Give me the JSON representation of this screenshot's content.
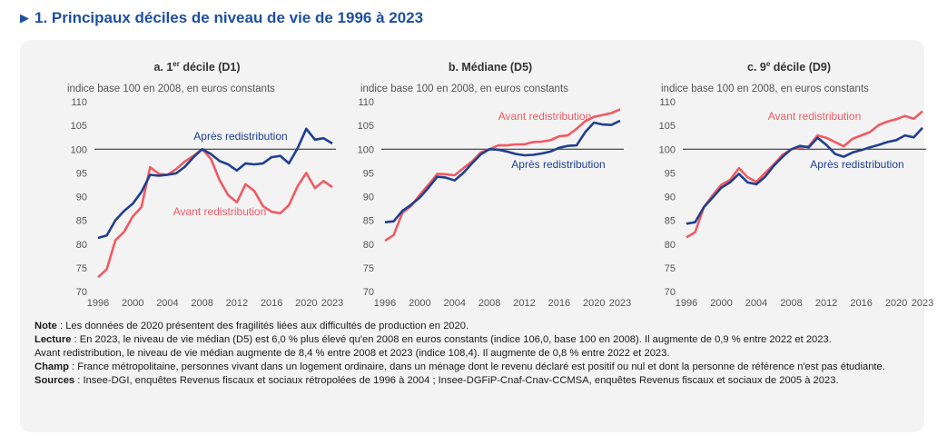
{
  "title": "1. Principaux déciles de niveau de vie de 1996 à 2023",
  "colors": {
    "apres": "#1f3f8f",
    "avant": "#f05a64",
    "ref": "#222222",
    "accent": "#1f4fa0"
  },
  "y_axis_ticks": [
    "110",
    "105",
    "100",
    "95",
    "90",
    "85",
    "80",
    "75",
    "70"
  ],
  "x_axis_ticks": [
    "1996",
    "2000",
    "2004",
    "2008",
    "2012",
    "2016",
    "2020",
    "2023"
  ],
  "charts": [
    {
      "title_prefix": "a. 1",
      "title_sup": "er",
      "title_suffix": " décile (D1)",
      "subtitle": "indice base 100 en 2008, en euros constants",
      "label_apres": "Après redistribution",
      "label_avant": "Avant redistribution"
    },
    {
      "title_prefix": "b. Médiane (D5)",
      "title_sup": "",
      "title_suffix": "",
      "subtitle": "indice base 100 en 2008, en euros constants",
      "label_apres": "Après redistribution",
      "label_avant": "Avant redistribution"
    },
    {
      "title_prefix": "c. 9",
      "title_sup": "e",
      "title_suffix": " décile (D9)",
      "subtitle": "indice base 100 en 2008, en euros constants",
      "label_apres": "Après redistribution",
      "label_avant": "Avant redistribution"
    }
  ],
  "notes": {
    "note_label": "Note",
    "note_text": " : Les données de 2020 présentent des fragilités liées aux difficultés de production en 2020.",
    "lecture_label": "Lecture",
    "lecture_text": " : En 2023, le niveau de vie médian (D5) est 6,0 % plus élevé qu'en 2008 en euros constants (indice 106,0, base 100 en 2008). Il augmente de 0,9 % entre 2022 et 2023.",
    "lecture_text2": "Avant redistribution, le niveau de vie médian augmente de 8,4 % entre 2008 et 2023 (indice 108,4). Il augmente de 0,8 % entre 2022 et 2023.",
    "champ_label": "Champ",
    "champ_text": " : France métropolitaine, personnes vivant dans un logement ordinaire, dans un ménage dont le revenu déclaré est positif ou nul et dont la personne de référence n'est pas étudiante.",
    "sources_label": "Sources",
    "sources_text": " : Insee-DGI, enquêtes Revenus fiscaux et sociaux rétropolées de 1996 à 2004 ; Insee-DGFiP-Cnaf-Cnav-CCMSA, enquêtes Revenus fiscaux et sociaux de 2005 à 2023."
  },
  "chart_data": [
    {
      "type": "line",
      "title": "a. 1er décile (D1)",
      "ylabel": "indice base 100 en 2008, en euros constants",
      "ylim": [
        70,
        110
      ],
      "reference_line": 100,
      "x": [
        1996,
        1997,
        1998,
        1999,
        2000,
        2001,
        2002,
        2003,
        2004,
        2005,
        2006,
        2007,
        2008,
        2009,
        2010,
        2011,
        2012,
        2013,
        2014,
        2015,
        2016,
        2017,
        2018,
        2019,
        2020,
        2021,
        2022,
        2023
      ],
      "series": [
        {
          "name": "Après redistribution",
          "values": [
            81.3,
            81.8,
            85.0,
            87.0,
            88.5,
            91.0,
            94.6,
            94.4,
            94.6,
            94.9,
            96.3,
            98.3,
            100.0,
            99.0,
            97.5,
            96.8,
            95.5,
            97.0,
            96.8,
            97.0,
            98.3,
            98.6,
            97.0,
            100.2,
            104.3,
            102.0,
            102.3,
            101.2
          ]
        },
        {
          "name": "Avant redistribution",
          "values": [
            73.0,
            74.7,
            80.8,
            82.6,
            85.8,
            87.8,
            96.2,
            94.8,
            94.6,
            95.8,
            97.4,
            98.6,
            100.0,
            98.0,
            93.5,
            90.3,
            88.8,
            92.6,
            91.2,
            88.0,
            86.8,
            86.5,
            88.2,
            92.2,
            95.0,
            91.8,
            93.3,
            92.0
          ]
        }
      ]
    },
    {
      "type": "line",
      "title": "b. Médiane (D5)",
      "ylabel": "indice base 100 en 2008, en euros constants",
      "ylim": [
        70,
        110
      ],
      "reference_line": 100,
      "x": [
        1996,
        1997,
        1998,
        1999,
        2000,
        2001,
        2002,
        2003,
        2004,
        2005,
        2006,
        2007,
        2008,
        2009,
        2010,
        2011,
        2012,
        2013,
        2014,
        2015,
        2016,
        2017,
        2018,
        2019,
        2020,
        2021,
        2022,
        2023
      ],
      "series": [
        {
          "name": "Après redistribution",
          "values": [
            84.6,
            84.8,
            87.0,
            88.3,
            89.8,
            91.9,
            94.2,
            94.0,
            93.4,
            95.0,
            97.0,
            98.9,
            100.0,
            99.9,
            99.5,
            99.0,
            98.7,
            98.8,
            99.1,
            99.5,
            100.3,
            100.7,
            100.8,
            103.6,
            105.6,
            105.2,
            105.1,
            106.0
          ]
        },
        {
          "name": "Avant redistribution",
          "values": [
            80.7,
            81.9,
            86.6,
            88.0,
            90.4,
            92.5,
            94.8,
            94.7,
            94.5,
            96.0,
            97.4,
            99.3,
            100.0,
            100.8,
            100.8,
            101.0,
            101.0,
            101.5,
            101.6,
            101.9,
            102.7,
            102.9,
            104.3,
            105.9,
            106.8,
            107.2,
            107.6,
            108.4
          ]
        }
      ]
    },
    {
      "type": "line",
      "title": "c. 9e décile (D9)",
      "ylabel": "indice base 100 en 2008, en euros constants",
      "ylim": [
        70,
        110
      ],
      "reference_line": 100,
      "x": [
        1996,
        1997,
        1998,
        1999,
        2000,
        2001,
        2002,
        2003,
        2004,
        2005,
        2006,
        2007,
        2008,
        2009,
        2010,
        2011,
        2012,
        2013,
        2014,
        2015,
        2016,
        2017,
        2018,
        2019,
        2020,
        2021,
        2022,
        2023
      ],
      "series": [
        {
          "name": "Après redistribution",
          "values": [
            84.3,
            84.6,
            87.8,
            89.8,
            91.9,
            93.0,
            94.8,
            93.0,
            92.6,
            94.2,
            96.5,
            98.4,
            100.0,
            100.7,
            100.4,
            102.4,
            100.9,
            99.0,
            98.4,
            99.3,
            99.8,
            100.4,
            100.9,
            101.5,
            101.9,
            102.9,
            102.5,
            104.5
          ]
        },
        {
          "name": "Avant redistribution",
          "values": [
            81.4,
            82.5,
            87.8,
            90.3,
            92.5,
            93.5,
            96.0,
            94.1,
            93.1,
            95.0,
            96.8,
            98.8,
            100.0,
            100.3,
            100.6,
            102.9,
            102.4,
            101.5,
            100.6,
            102.2,
            102.9,
            103.6,
            105.1,
            105.8,
            106.3,
            107.0,
            106.4,
            108.0
          ]
        }
      ]
    }
  ]
}
